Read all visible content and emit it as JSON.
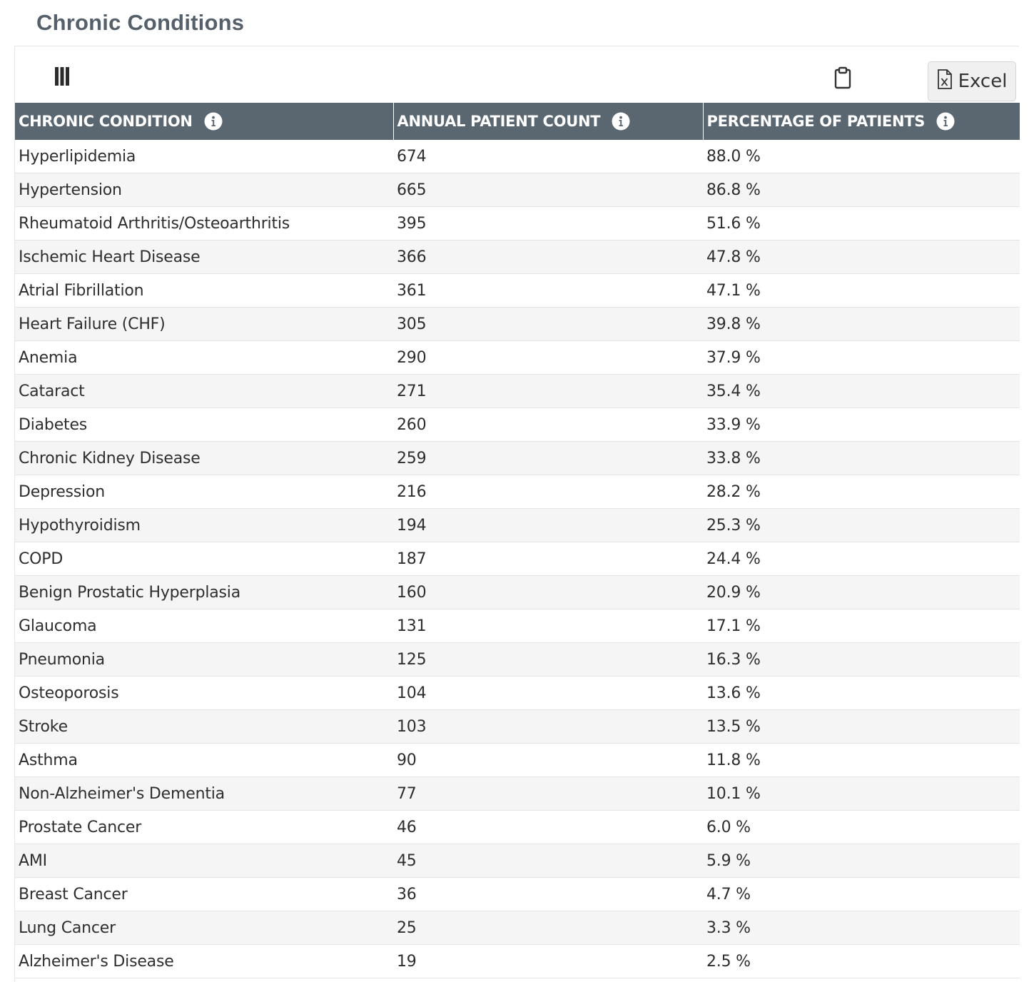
{
  "page": {
    "title": "Chronic Conditions"
  },
  "toolbar": {
    "columns_icon": "columns-icon",
    "clipboard_icon": "clipboard-icon",
    "excel_icon": "excel-file-icon",
    "excel_label": "Excel"
  },
  "table": {
    "headers": [
      {
        "label": "CHRONIC CONDITION",
        "icon": "info-icon"
      },
      {
        "label": "ANNUAL PATIENT COUNT",
        "icon": "info-icon"
      },
      {
        "label": "PERCENTAGE OF PATIENTS",
        "icon": "info-icon"
      }
    ],
    "rows": [
      {
        "condition": "Hyperlipidemia",
        "count": "674",
        "percent": "88.0 %"
      },
      {
        "condition": "Hypertension",
        "count": "665",
        "percent": "86.8 %"
      },
      {
        "condition": "Rheumatoid Arthritis/Osteoarthritis",
        "count": "395",
        "percent": "51.6 %"
      },
      {
        "condition": "Ischemic Heart Disease",
        "count": "366",
        "percent": "47.8 %"
      },
      {
        "condition": "Atrial Fibrillation",
        "count": "361",
        "percent": "47.1 %"
      },
      {
        "condition": "Heart Failure (CHF)",
        "count": "305",
        "percent": "39.8 %"
      },
      {
        "condition": "Anemia",
        "count": "290",
        "percent": "37.9 %"
      },
      {
        "condition": "Cataract",
        "count": "271",
        "percent": "35.4 %"
      },
      {
        "condition": "Diabetes",
        "count": "260",
        "percent": "33.9 %"
      },
      {
        "condition": "Chronic Kidney Disease",
        "count": "259",
        "percent": "33.8 %"
      },
      {
        "condition": "Depression",
        "count": "216",
        "percent": "28.2 %"
      },
      {
        "condition": "Hypothyroidism",
        "count": "194",
        "percent": "25.3 %"
      },
      {
        "condition": "COPD",
        "count": "187",
        "percent": "24.4 %"
      },
      {
        "condition": "Benign Prostatic Hyperplasia",
        "count": "160",
        "percent": "20.9 %"
      },
      {
        "condition": "Glaucoma",
        "count": "131",
        "percent": "17.1 %"
      },
      {
        "condition": "Pneumonia",
        "count": "125",
        "percent": "16.3 %"
      },
      {
        "condition": "Osteoporosis",
        "count": "104",
        "percent": "13.6 %"
      },
      {
        "condition": "Stroke",
        "count": "103",
        "percent": "13.5 %"
      },
      {
        "condition": "Asthma",
        "count": "90",
        "percent": "11.8 %"
      },
      {
        "condition": "Non-Alzheimer's Dementia",
        "count": "77",
        "percent": "10.1 %"
      },
      {
        "condition": "Prostate Cancer",
        "count": "46",
        "percent": "6.0 %"
      },
      {
        "condition": "AMI",
        "count": "45",
        "percent": "5.9 %"
      },
      {
        "condition": "Breast Cancer",
        "count": "36",
        "percent": "4.7 %"
      },
      {
        "condition": "Lung Cancer",
        "count": "25",
        "percent": "3.3 %"
      },
      {
        "condition": "Alzheimer's Disease",
        "count": "19",
        "percent": "2.5 %"
      }
    ]
  },
  "colors": {
    "header_bg": "#5a6670",
    "title": "#55606b",
    "stripe": "#f5f5f5"
  }
}
